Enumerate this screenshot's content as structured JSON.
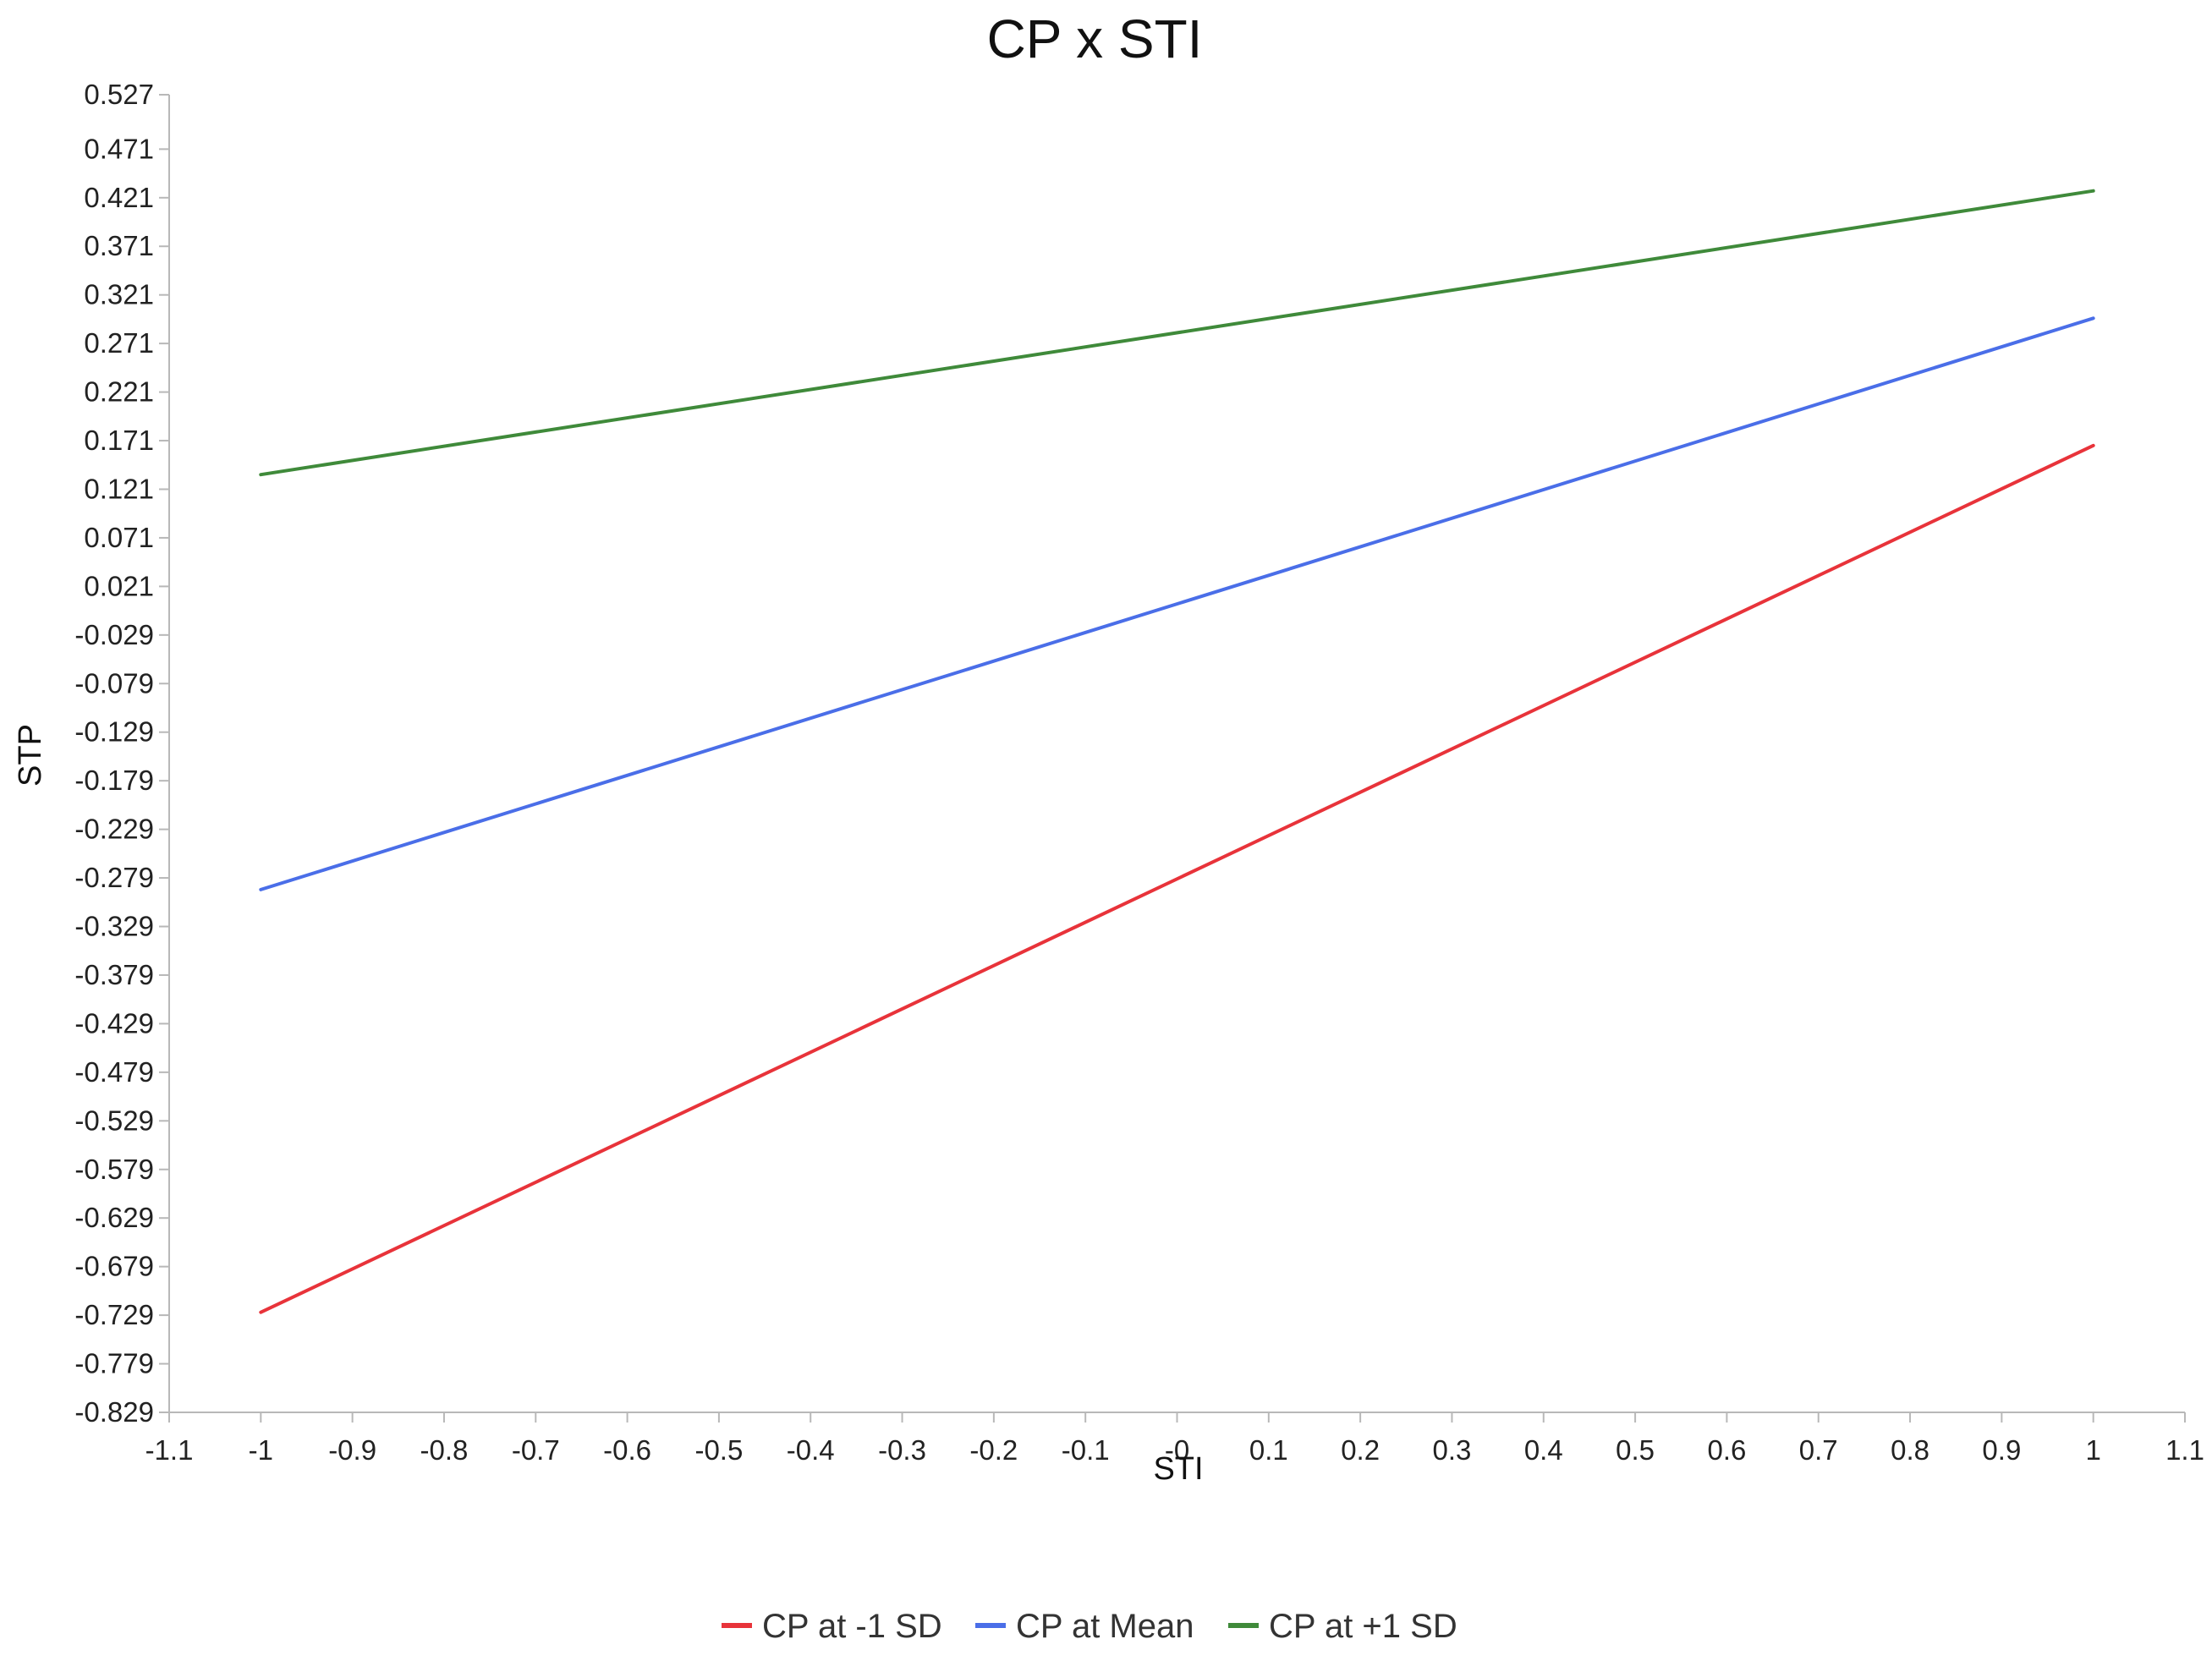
{
  "chart_data": {
    "type": "line",
    "title": "CP x STI",
    "xlabel": "STI",
    "ylabel": "STP",
    "xlim": [
      -1.1,
      1.1
    ],
    "ylim": [
      -0.829,
      0.527
    ],
    "x_ticks": [
      "-1.1",
      "-1",
      "-0.9",
      "-0.8",
      "-0.7",
      "-0.6",
      "-0.5",
      "-0.4",
      "-0.3",
      "-0.2",
      "-0.1",
      "-0",
      "0.1",
      "0.2",
      "0.3",
      "0.4",
      "0.5",
      "0.6",
      "0.7",
      "0.8",
      "0.9",
      "1",
      "1.1"
    ],
    "y_ticks": [
      "0.527",
      "0.471",
      "0.421",
      "0.371",
      "0.321",
      "0.271",
      "0.221",
      "0.171",
      "0.121",
      "0.071",
      "0.021",
      "-0.029",
      "-0.079",
      "-0.129",
      "-0.179",
      "-0.229",
      "-0.279",
      "-0.329",
      "-0.379",
      "-0.429",
      "-0.479",
      "-0.529",
      "-0.579",
      "-0.629",
      "-0.679",
      "-0.729",
      "-0.779",
      "-0.829"
    ],
    "grid": false,
    "legend_position": "bottom",
    "series": [
      {
        "name": "CP at -1 SD",
        "color": "#e8333a",
        "x": [
          -1,
          1
        ],
        "y": [
          -0.726,
          0.166
        ]
      },
      {
        "name": "CP at Mean",
        "color": "#4a6ee8",
        "x": [
          -1,
          1
        ],
        "y": [
          -0.291,
          0.297
        ]
      },
      {
        "name": "CP at +1 SD",
        "color": "#3f8a3a",
        "x": [
          -1,
          1
        ],
        "y": [
          0.136,
          0.428
        ]
      }
    ]
  }
}
